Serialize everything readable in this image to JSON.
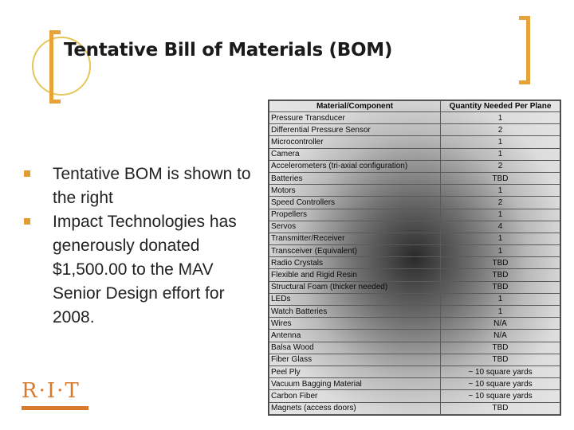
{
  "slide": {
    "title": "Tentative Bill of Materials (BOM)",
    "bullets": [
      "Tentative BOM is shown to the right",
      "Impact Technologies has generously donated $1,500.00 to the MAV Senior Design effort for 2008."
    ],
    "logo_text": "R·I·T",
    "accent_color": "#e29a36"
  },
  "bom": {
    "headers": [
      "Material/Component",
      "Quantity Needed Per Plane"
    ],
    "rows": [
      [
        "Pressure Transducer",
        "1"
      ],
      [
        "Differential Pressure Sensor",
        "2"
      ],
      [
        "Microcontroller",
        "1"
      ],
      [
        "Camera",
        "1"
      ],
      [
        "Accelerometers (tri-axial configuration)",
        "2"
      ],
      [
        "Batteries",
        "TBD"
      ],
      [
        "Motors",
        "1"
      ],
      [
        "Speed Controllers",
        "2"
      ],
      [
        "Propellers",
        "1"
      ],
      [
        "Servos",
        "4"
      ],
      [
        "Transmitter/Receiver",
        "1"
      ],
      [
        "Transceiver (Equivalent)",
        "1"
      ],
      [
        "Radio Crystals",
        "TBD"
      ],
      [
        "Flexible and Rigid Resin",
        "TBD"
      ],
      [
        "Structural Foam (thicker needed)",
        "TBD"
      ],
      [
        "LEDs",
        "1"
      ],
      [
        "Watch Batteries",
        "1"
      ],
      [
        "Wires",
        "N/A"
      ],
      [
        "Antenna",
        "N/A"
      ],
      [
        "Balsa Wood",
        "TBD"
      ],
      [
        "Fiber Glass",
        "TBD"
      ],
      [
        "Peel Ply",
        "~ 10 square yards"
      ],
      [
        "Vacuum Bagging Material",
        "~ 10 square yards"
      ],
      [
        "Carbon Fiber",
        "~ 10 square yards"
      ],
      [
        "Magnets (access doors)",
        "TBD"
      ]
    ]
  }
}
